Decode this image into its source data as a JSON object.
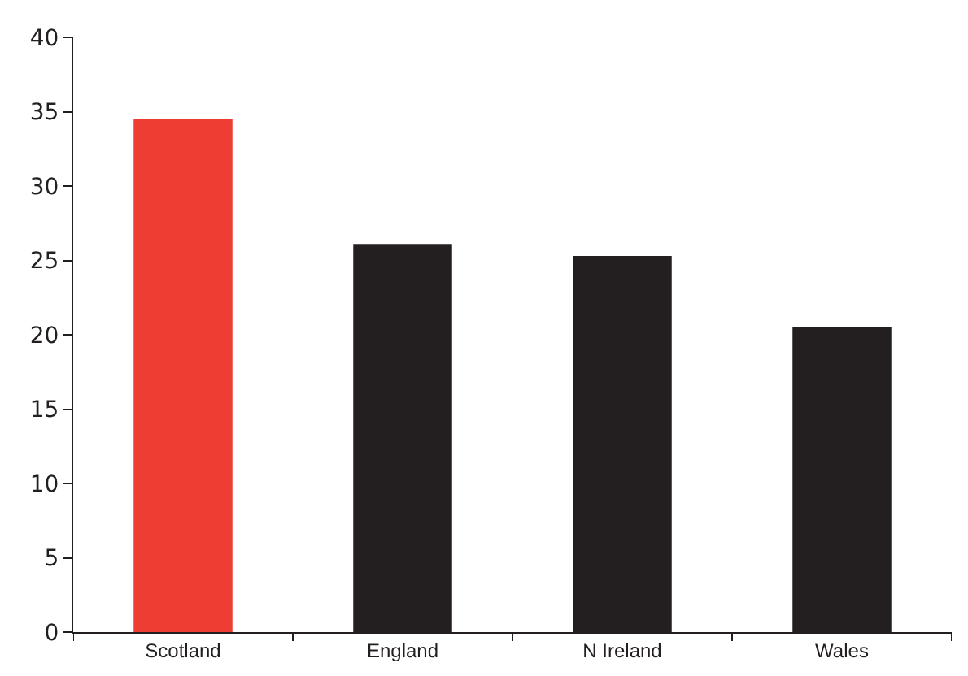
{
  "chart_data": {
    "type": "bar",
    "categories": [
      "Scotland",
      "England",
      "N Ireland",
      "Wales"
    ],
    "values": [
      34.5,
      26.1,
      25.3,
      20.5
    ],
    "colors": [
      "#ee3e34",
      "#231f20",
      "#231f20",
      "#231f20"
    ],
    "ylim": [
      0,
      40
    ],
    "yticks": [
      0,
      5,
      10,
      15,
      20,
      25,
      30,
      35,
      40
    ],
    "grid": false
  }
}
